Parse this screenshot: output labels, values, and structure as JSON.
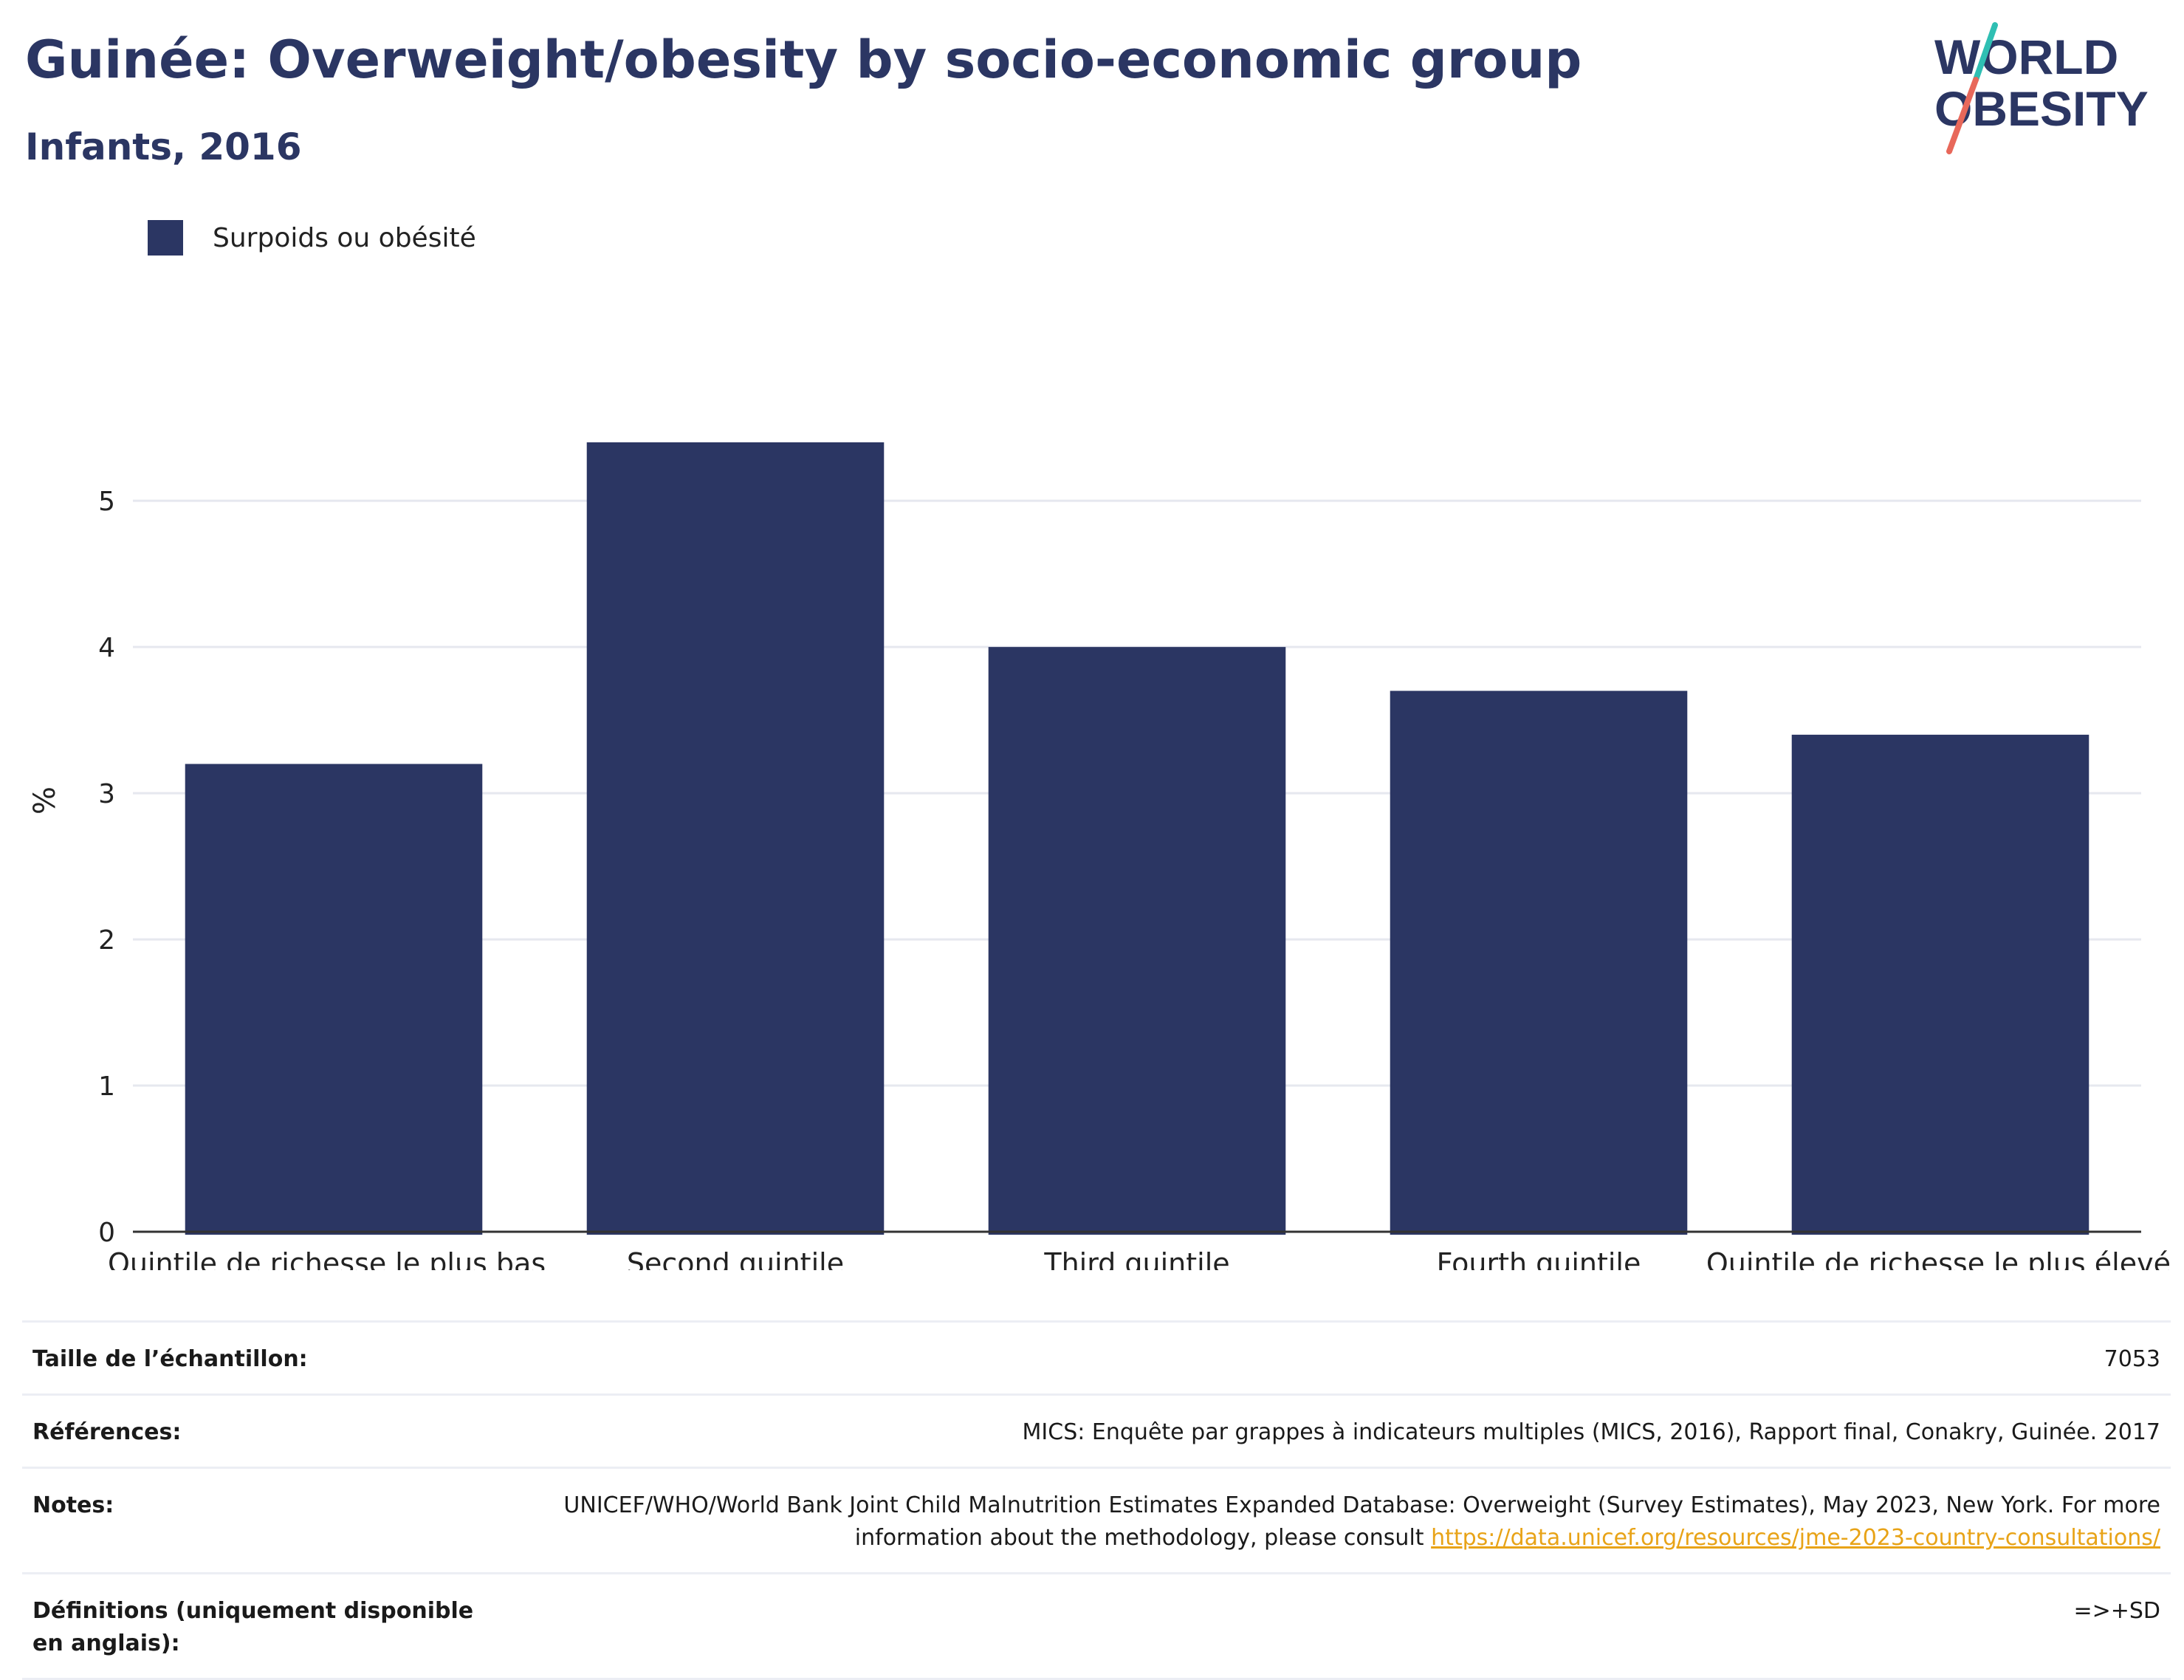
{
  "header": {
    "title": "Guinée: Overweight/obesity by socio-economic group",
    "subtitle": "Infants, 2016"
  },
  "logo": {
    "line1": "WORLD",
    "line2": "OBESITY"
  },
  "colors": {
    "bar": "#2b3663",
    "title": "#2b3663",
    "grid": "#e6e8ef",
    "link": "#e8a317",
    "logo_teal": "#2fbfb3",
    "logo_coral": "#e8685a"
  },
  "chart_data": {
    "type": "bar",
    "title": "Guinée: Overweight/obesity by socio-economic group",
    "subtitle": "Infants, 2016",
    "categories": [
      "Quintile de richesse le plus bas",
      "Second quintile",
      "Third quintile",
      "Fourth quintile",
      "Quintile de richesse le plus élevé"
    ],
    "series": [
      {
        "name": "Surpoids ou obésité",
        "values": [
          3.2,
          5.4,
          4.0,
          3.7,
          3.4
        ]
      }
    ],
    "xlabel": "",
    "ylabel": "%",
    "ylim": [
      0,
      5.9
    ],
    "yticks": [
      0,
      1,
      2,
      3,
      4,
      5
    ],
    "grid": true,
    "legend": "top-left"
  },
  "info": {
    "sample_label": "Taille de l’échantillon:",
    "sample_value": "7053",
    "references_label": "Références:",
    "references_value": "MICS: Enquête par grappes à indicateurs multiples (MICS, 2016), Rapport final, Conakry, Guinée. 2017",
    "notes_label": "Notes:",
    "notes_value_part1": "UNICEF/WHO/World Bank Joint Child Malnutrition Estimates Expanded Database: Overweight (Survey Estimates), May 2023, New York. For more information about the methodology, please consult",
    "notes_link": "https://data.unicef.org/resources/jme-2023-country-consultations/",
    "definitions_label": "Définitions (uniquement disponible en anglais):",
    "definitions_value": "=>+SD"
  }
}
